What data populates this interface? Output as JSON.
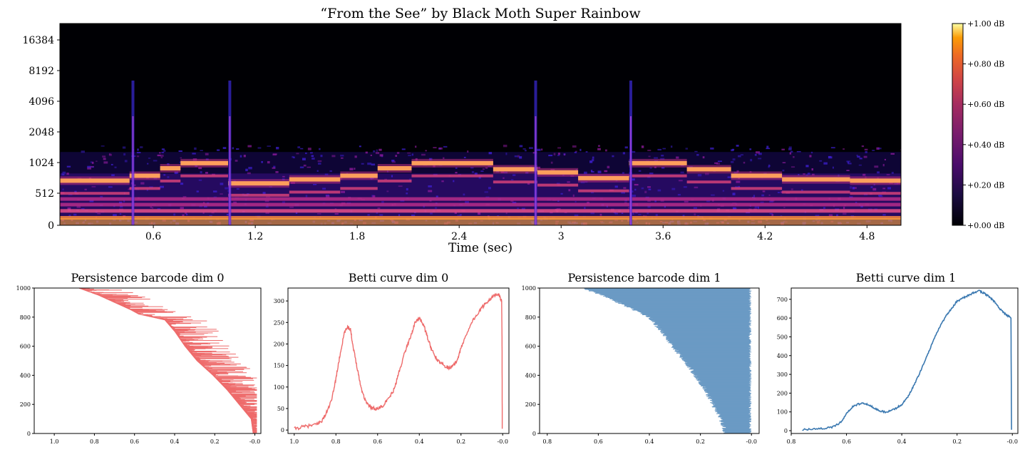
{
  "figure": {
    "title": "“From the See” by Black Moth Super Rainbow"
  },
  "chart_data": [
    {
      "type": "heatmap",
      "title": "“From the See” by Black Moth Super Rainbow",
      "xlabel": "Time (sec)",
      "ylabel": "",
      "x_ticks": [
        "0.6",
        "1.2",
        "1.8",
        "2.4",
        "3",
        "3.6",
        "4.2",
        "4.8"
      ],
      "x_tick_values": [
        0.6,
        1.2,
        1.8,
        2.4,
        3.0,
        3.6,
        4.2,
        4.8
      ],
      "xlim": [
        0.05,
        5.0
      ],
      "y_scale": "log2",
      "y_ticks": [
        "0",
        "512",
        "1024",
        "2048",
        "4096",
        "8192",
        "16384"
      ],
      "y_tick_values": [
        0,
        512,
        1024,
        2048,
        4096,
        8192,
        16384
      ],
      "colormap": "magma",
      "colorbar": {
        "ticks": [
          "+0.00 dB",
          "+0.20 dB",
          "+0.40 dB",
          "+0.60 dB",
          "+0.80 dB",
          "+1.00 dB"
        ],
        "range": [
          0.0,
          1.0
        ]
      },
      "melody_segments": [
        {
          "start": 0.05,
          "end": 0.46,
          "freq": 680
        },
        {
          "start": 0.46,
          "end": 0.64,
          "freq": 760
        },
        {
          "start": 0.64,
          "end": 0.76,
          "freq": 900
        },
        {
          "start": 0.76,
          "end": 1.04,
          "freq": 1010
        },
        {
          "start": 1.04,
          "end": 1.4,
          "freq": 640
        },
        {
          "start": 1.4,
          "end": 1.7,
          "freq": 700
        },
        {
          "start": 1.7,
          "end": 1.92,
          "freq": 760
        },
        {
          "start": 1.92,
          "end": 2.12,
          "freq": 900
        },
        {
          "start": 2.12,
          "end": 2.6,
          "freq": 1010
        },
        {
          "start": 2.6,
          "end": 2.86,
          "freq": 880
        },
        {
          "start": 2.86,
          "end": 3.1,
          "freq": 820
        },
        {
          "start": 3.1,
          "end": 3.4,
          "freq": 720
        },
        {
          "start": 3.4,
          "end": 3.74,
          "freq": 1010
        },
        {
          "start": 3.74,
          "end": 4.0,
          "freq": 880
        },
        {
          "start": 4.0,
          "end": 4.3,
          "freq": 760
        },
        {
          "start": 4.3,
          "end": 4.7,
          "freq": 700
        },
        {
          "start": 4.7,
          "end": 5.0,
          "freq": 680
        }
      ],
      "bass_bands": [
        120,
        230,
        330,
        420
      ],
      "percussive_hits": [
        0.48,
        1.05,
        2.85,
        3.41
      ]
    },
    {
      "type": "barcode",
      "title": "Persistence barcode dim 0",
      "color": "#ee6b6b",
      "xlim": [
        1.1,
        -0.03
      ],
      "x_ticks": [
        "1.0",
        "0.8",
        "0.6",
        "0.4",
        "0.2",
        "-0.0"
      ],
      "x_tick_values": [
        1.0,
        0.8,
        0.6,
        0.4,
        0.2,
        0.0
      ],
      "ylim": [
        0,
        1000
      ],
      "y_ticks": [
        "0",
        "200",
        "400",
        "600",
        "800",
        "1000"
      ],
      "y_tick_values": [
        0,
        200,
        400,
        600,
        800,
        1000
      ],
      "bar_count": 1000,
      "birth_profile": [
        [
          0,
          0.01
        ],
        [
          100,
          0.02
        ],
        [
          200,
          0.08
        ],
        [
          300,
          0.14
        ],
        [
          400,
          0.21
        ],
        [
          500,
          0.29
        ],
        [
          600,
          0.35
        ],
        [
          700,
          0.4
        ],
        [
          780,
          0.45
        ],
        [
          820,
          0.58
        ],
        [
          850,
          0.62
        ],
        [
          900,
          0.7
        ],
        [
          950,
          0.78
        ],
        [
          1000,
          0.88
        ]
      ],
      "lifetime_max": 0.22
    },
    {
      "type": "line",
      "title": "Betti curve dim 0",
      "color": "#ee6b6b",
      "xlim": [
        1.03,
        -0.03
      ],
      "x_ticks": [
        "1.0",
        "0.8",
        "0.6",
        "0.4",
        "0.2",
        "-0.0"
      ],
      "x_tick_values": [
        1.0,
        0.8,
        0.6,
        0.4,
        0.2,
        0.0
      ],
      "ylim": [
        -8,
        330
      ],
      "y_ticks": [
        "0",
        "50",
        "100",
        "150",
        "200",
        "250",
        "300"
      ],
      "y_tick_values": [
        0,
        50,
        100,
        150,
        200,
        250,
        300
      ],
      "x": [
        1.0,
        0.95,
        0.9,
        0.87,
        0.85,
        0.82,
        0.8,
        0.78,
        0.76,
        0.745,
        0.73,
        0.72,
        0.7,
        0.68,
        0.66,
        0.64,
        0.62,
        0.6,
        0.58,
        0.55,
        0.52,
        0.5,
        0.47,
        0.44,
        0.42,
        0.4,
        0.38,
        0.36,
        0.34,
        0.31,
        0.28,
        0.26,
        0.24,
        0.22,
        0.2,
        0.18,
        0.15,
        0.12,
        0.09,
        0.06,
        0.04,
        0.02,
        0.01,
        0.005,
        0.003,
        0.002
      ],
      "y": [
        3,
        8,
        12,
        20,
        35,
        70,
        120,
        175,
        225,
        240,
        235,
        200,
        150,
        100,
        70,
        55,
        50,
        50,
        55,
        70,
        95,
        130,
        180,
        220,
        250,
        260,
        245,
        215,
        185,
        160,
        150,
        145,
        148,
        160,
        190,
        215,
        250,
        270,
        290,
        305,
        312,
        315,
        305,
        300,
        200,
        3
      ]
    },
    {
      "type": "barcode",
      "title": "Persistence barcode dim 1",
      "color": "#6b9ac4",
      "xlim": [
        0.83,
        -0.03
      ],
      "x_ticks": [
        "0.8",
        "0.6",
        "0.4",
        "0.2",
        "-0.0"
      ],
      "x_tick_values": [
        0.8,
        0.6,
        0.4,
        0.2,
        0.0
      ],
      "ylim": [
        0,
        1000
      ],
      "y_ticks": [
        "0",
        "200",
        "400",
        "600",
        "800",
        "1000"
      ],
      "y_tick_values": [
        0,
        200,
        400,
        600,
        800,
        1000
      ],
      "bar_count": 1000,
      "birth_profile": [
        [
          0,
          0.1
        ],
        [
          100,
          0.12
        ],
        [
          200,
          0.15
        ],
        [
          300,
          0.18
        ],
        [
          400,
          0.22
        ],
        [
          500,
          0.26
        ],
        [
          600,
          0.31
        ],
        [
          700,
          0.35
        ],
        [
          800,
          0.4
        ],
        [
          850,
          0.46
        ],
        [
          900,
          0.52
        ],
        [
          950,
          0.58
        ],
        [
          1000,
          0.66
        ]
      ],
      "death": 0.0
    },
    {
      "type": "line",
      "title": "Betti curve dim 1",
      "color": "#3a78b0",
      "xlim": [
        0.8,
        -0.02
      ],
      "x_ticks": [
        "0.8",
        "0.6",
        "0.4",
        "0.2",
        "-0.0"
      ],
      "x_tick_values": [
        0.8,
        0.6,
        0.4,
        0.2,
        0.0
      ],
      "ylim": [
        -15,
        760
      ],
      "y_ticks": [
        "0",
        "100",
        "200",
        "300",
        "400",
        "500",
        "600",
        "700"
      ],
      "y_tick_values": [
        0,
        100,
        200,
        300,
        400,
        500,
        600,
        700
      ],
      "x": [
        0.76,
        0.72,
        0.68,
        0.65,
        0.62,
        0.6,
        0.58,
        0.56,
        0.54,
        0.52,
        0.5,
        0.48,
        0.46,
        0.44,
        0.42,
        0.4,
        0.38,
        0.36,
        0.34,
        0.32,
        0.3,
        0.28,
        0.26,
        0.24,
        0.22,
        0.2,
        0.18,
        0.16,
        0.14,
        0.12,
        0.1,
        0.08,
        0.06,
        0.04,
        0.02,
        0.01,
        0.005,
        0.003
      ],
      "y": [
        5,
        8,
        12,
        20,
        45,
        90,
        125,
        140,
        145,
        140,
        120,
        105,
        100,
        105,
        120,
        140,
        175,
        230,
        290,
        360,
        430,
        500,
        560,
        610,
        650,
        690,
        705,
        720,
        735,
        745,
        730,
        710,
        680,
        640,
        615,
        608,
        600,
        5
      ]
    }
  ]
}
